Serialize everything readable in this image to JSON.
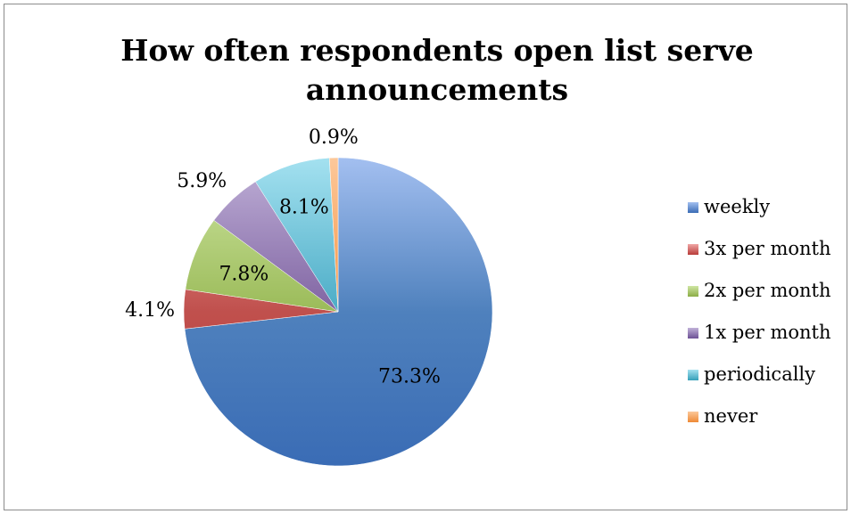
{
  "chart_data": {
    "type": "pie",
    "title": "How often respondents open list serve announcements",
    "title_lines": [
      "How often respondents open list serve",
      "announcements"
    ],
    "categories": [
      "weekly",
      "3x per month",
      "2x per month",
      "1x per month",
      "periodically",
      "never"
    ],
    "values": [
      73.3,
      4.1,
      7.8,
      5.9,
      8.1,
      0.9
    ],
    "data_labels": [
      "73.3%",
      "4.1%",
      "7.8%",
      "5.9%",
      "8.1%",
      "0.9%"
    ],
    "colors": [
      "#4f81bd",
      "#c0504d",
      "#9bbb59",
      "#8064a2",
      "#4bacc6",
      "#f79646"
    ],
    "light_colors": [
      "#a3bff0",
      "#f0a6a5",
      "#cfe6a3",
      "#c0b1d8",
      "#a4e1f0",
      "#fcc89a"
    ],
    "dark_colors": [
      "#3a6cb5",
      "#b83c3a",
      "#8cad46",
      "#6d5195",
      "#35a0b9",
      "#ee8a36"
    ],
    "start_angle_deg": 0,
    "direction": "clockwise",
    "legend_position": "right"
  }
}
